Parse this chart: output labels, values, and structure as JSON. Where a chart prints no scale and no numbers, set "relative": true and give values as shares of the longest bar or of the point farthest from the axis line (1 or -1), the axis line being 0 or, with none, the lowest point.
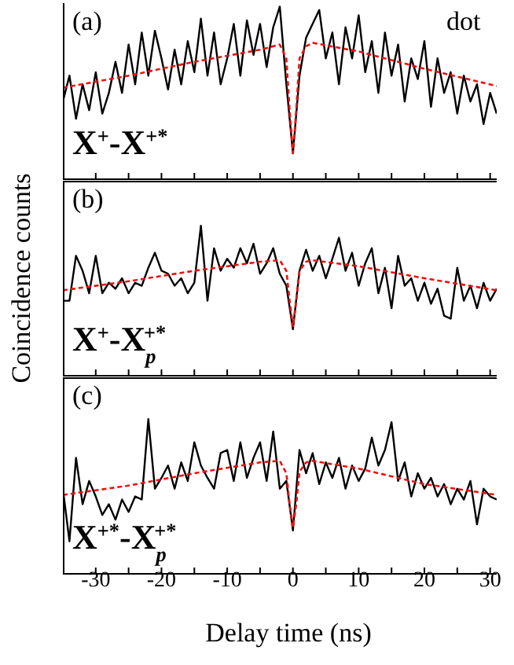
{
  "chart_data": [
    {
      "type": "line",
      "relative": true,
      "xlim": [
        -35,
        31
      ],
      "xticks": [
        {
          "value": -35,
          "label": null
        },
        {
          "value": -30,
          "label": null
        },
        {
          "value": -25,
          "label": null
        },
        {
          "value": -20,
          "label": null
        },
        {
          "value": -15,
          "label": null
        },
        {
          "value": -10,
          "label": null
        },
        {
          "value": -5,
          "label": null
        },
        {
          "value": 0,
          "label": null
        },
        {
          "value": 5,
          "label": null
        },
        {
          "value": 10,
          "label": null
        },
        {
          "value": 15,
          "label": null
        },
        {
          "value": 20,
          "label": null
        },
        {
          "value": 25,
          "label": null
        },
        {
          "value": 30,
          "label": null
        }
      ],
      "tick_labels": false,
      "marker": "none",
      "annotations": [
        "(a)",
        "X$^{+}$-X$^{+*}$",
        "dot"
      ],
      "series": [
        {
          "color": "#000000",
          "line_style": "solid",
          "x": [
            -35,
            -34,
            -33,
            -32,
            -31,
            -30,
            -29,
            -28,
            -27,
            -26,
            -25,
            -24,
            -23,
            -22,
            -21,
            -20,
            -19,
            -18,
            -17,
            -16,
            -15,
            -14,
            -13,
            -12,
            -11,
            -10,
            -9,
            -8,
            -7,
            -6,
            -5,
            -4,
            -3,
            -2,
            -1,
            0,
            1,
            2,
            3,
            4,
            5,
            6,
            7,
            8,
            9,
            10,
            11,
            12,
            13,
            14,
            15,
            16,
            17,
            18,
            19,
            20,
            21,
            22,
            23,
            24,
            25,
            26,
            27,
            28,
            29,
            30,
            31
          ],
          "values": [
            0.45,
            0.6,
            0.35,
            0.55,
            0.4,
            0.62,
            0.38,
            0.5,
            0.68,
            0.5,
            0.78,
            0.55,
            0.85,
            0.6,
            0.86,
            0.7,
            0.52,
            0.75,
            0.55,
            0.8,
            0.62,
            0.93,
            0.6,
            0.85,
            0.55,
            0.7,
            0.9,
            0.6,
            0.92,
            0.72,
            0.9,
            0.65,
            0.88,
            1.0,
            0.55,
            0.15,
            0.6,
            0.82,
            0.9,
            0.98,
            0.7,
            0.85,
            0.55,
            0.88,
            0.7,
            0.95,
            0.62,
            0.8,
            0.5,
            0.85,
            0.6,
            0.78,
            0.45,
            0.7,
            0.58,
            0.8,
            0.42,
            0.7,
            0.5,
            0.62,
            0.38,
            0.6,
            0.45,
            0.55,
            0.32,
            0.5,
            0.38
          ]
        },
        {
          "color": "#ee1111",
          "line_style": "dashed",
          "x": [
            -35,
            -25,
            -15,
            -5,
            -2,
            -1,
            -0.5,
            0,
            0.5,
            1,
            2,
            3,
            10,
            20,
            31
          ],
          "values": [
            0.53,
            0.6,
            0.68,
            0.75,
            0.78,
            0.7,
            0.4,
            0.15,
            0.4,
            0.7,
            0.77,
            0.79,
            0.74,
            0.64,
            0.54
          ]
        }
      ]
    },
    {
      "type": "line",
      "relative": true,
      "xlim": [
        -35,
        31
      ],
      "xticks": [
        {
          "value": -35,
          "label": null
        },
        {
          "value": -30,
          "label": null
        },
        {
          "value": -25,
          "label": null
        },
        {
          "value": -20,
          "label": null
        },
        {
          "value": -15,
          "label": null
        },
        {
          "value": -10,
          "label": null
        },
        {
          "value": -5,
          "label": null
        },
        {
          "value": 0,
          "label": null
        },
        {
          "value": 5,
          "label": null
        },
        {
          "value": 10,
          "label": null
        },
        {
          "value": 15,
          "label": null
        },
        {
          "value": 20,
          "label": null
        },
        {
          "value": 25,
          "label": null
        },
        {
          "value": 30,
          "label": null
        }
      ],
      "tick_labels": false,
      "marker": "none",
      "ylabel": "Coincidence counts",
      "annotations": [
        "(b)",
        "X$^{+}$-X$_{p}$$^{+*}$"
      ],
      "series": [
        {
          "color": "#000000",
          "line_style": "solid",
          "x": [
            -35,
            -34,
            -33,
            -32,
            -31,
            -30,
            -29,
            -28,
            -27,
            -26,
            -25,
            -24,
            -23,
            -22,
            -21,
            -20,
            -19,
            -18,
            -17,
            -16,
            -15,
            -14,
            -13,
            -12,
            -11,
            -10,
            -9,
            -8,
            -7,
            -6,
            -5,
            -4,
            -3,
            -2,
            -1,
            0,
            1,
            2,
            3,
            4,
            5,
            6,
            7,
            8,
            9,
            10,
            11,
            12,
            13,
            14,
            15,
            16,
            17,
            18,
            19,
            20,
            21,
            22,
            23,
            24,
            25,
            26,
            27,
            28,
            29,
            30,
            31
          ],
          "values": [
            0.5,
            0.5,
            0.8,
            0.7,
            0.55,
            0.8,
            0.55,
            0.62,
            0.58,
            0.65,
            0.55,
            0.62,
            0.6,
            0.72,
            0.82,
            0.7,
            0.68,
            0.6,
            0.65,
            0.55,
            0.62,
            1.0,
            0.5,
            0.85,
            0.7,
            0.78,
            0.72,
            0.85,
            0.75,
            0.88,
            0.68,
            0.75,
            0.85,
            0.68,
            0.6,
            0.31,
            0.7,
            0.84,
            0.7,
            0.8,
            0.65,
            0.78,
            0.92,
            0.7,
            0.82,
            0.6,
            0.75,
            0.85,
            0.55,
            0.72,
            0.45,
            0.8,
            0.6,
            0.65,
            0.5,
            0.62,
            0.48,
            0.58,
            0.4,
            0.38,
            0.72,
            0.5,
            0.6,
            0.45,
            0.62,
            0.5,
            0.58
          ]
        },
        {
          "color": "#ee1111",
          "line_style": "dashed",
          "x": [
            -35,
            -25,
            -15,
            -5,
            -2,
            -1,
            -0.5,
            0,
            0.5,
            1,
            2,
            3,
            10,
            20,
            31
          ],
          "values": [
            0.57,
            0.63,
            0.7,
            0.76,
            0.77,
            0.7,
            0.5,
            0.33,
            0.5,
            0.7,
            0.76,
            0.77,
            0.73,
            0.65,
            0.57
          ]
        }
      ]
    },
    {
      "type": "line",
      "relative": true,
      "xlim": [
        -35,
        31
      ],
      "xticks": [
        {
          "value": -35,
          "label": null
        },
        {
          "value": -30,
          "label": "-30"
        },
        {
          "value": -25,
          "label": null
        },
        {
          "value": -20,
          "label": "-20"
        },
        {
          "value": -15,
          "label": null
        },
        {
          "value": -10,
          "label": "-10"
        },
        {
          "value": -5,
          "label": null
        },
        {
          "value": 0,
          "label": "0"
        },
        {
          "value": 5,
          "label": null
        },
        {
          "value": 10,
          "label": "10"
        },
        {
          "value": 15,
          "label": null
        },
        {
          "value": 20,
          "label": "20"
        },
        {
          "value": 25,
          "label": null
        },
        {
          "value": 30,
          "label": "30"
        }
      ],
      "tick_labels": "x",
      "marker": "none",
      "xlabel": "Delay time (ns)",
      "annotations": [
        "(c)",
        "X$^{+*}$-X$_{p}$$^{+*}$"
      ],
      "series": [
        {
          "color": "#000000",
          "line_style": "solid",
          "x": [
            -35,
            -34,
            -33,
            -32,
            -31,
            -30,
            -29,
            -28,
            -27,
            -26,
            -25,
            -24,
            -23,
            -22,
            -21,
            -20,
            -19,
            -18,
            -17,
            -16,
            -15,
            -14,
            -13,
            -12,
            -11,
            -10,
            -9,
            -8,
            -7,
            -6,
            -5,
            -4,
            -3,
            -2,
            -1,
            0,
            1,
            2,
            3,
            4,
            5,
            6,
            7,
            8,
            9,
            10,
            11,
            12,
            13,
            14,
            15,
            16,
            17,
            18,
            19,
            20,
            21,
            22,
            23,
            24,
            25,
            26,
            27,
            28,
            29,
            30,
            31
          ],
          "values": [
            0.55,
            0.21,
            0.75,
            0.45,
            0.6,
            0.5,
            0.38,
            0.45,
            0.35,
            0.48,
            0.4,
            0.5,
            0.48,
            1.0,
            0.55,
            0.62,
            0.7,
            0.55,
            0.72,
            0.6,
            0.85,
            0.7,
            0.62,
            0.55,
            0.78,
            0.8,
            0.6,
            0.85,
            0.62,
            0.75,
            0.85,
            0.6,
            0.92,
            0.55,
            0.6,
            0.28,
            0.8,
            0.65,
            0.78,
            0.58,
            0.72,
            0.62,
            0.75,
            0.55,
            0.7,
            0.6,
            0.68,
            0.88,
            0.7,
            0.8,
            0.98,
            0.6,
            0.72,
            0.5,
            0.65,
            0.55,
            0.62,
            0.5,
            0.58,
            0.45,
            0.55,
            0.48,
            0.6,
            0.32,
            0.55,
            0.5,
            0.48
          ]
        },
        {
          "color": "#ee1111",
          "line_style": "dashed",
          "x": [
            -35,
            -25,
            -15,
            -5,
            -2,
            -1,
            -0.5,
            0,
            0.5,
            1,
            2,
            3,
            10,
            20,
            31
          ],
          "values": [
            0.51,
            0.57,
            0.65,
            0.72,
            0.73,
            0.65,
            0.45,
            0.3,
            0.45,
            0.66,
            0.72,
            0.73,
            0.68,
            0.58,
            0.51
          ]
        }
      ]
    }
  ]
}
